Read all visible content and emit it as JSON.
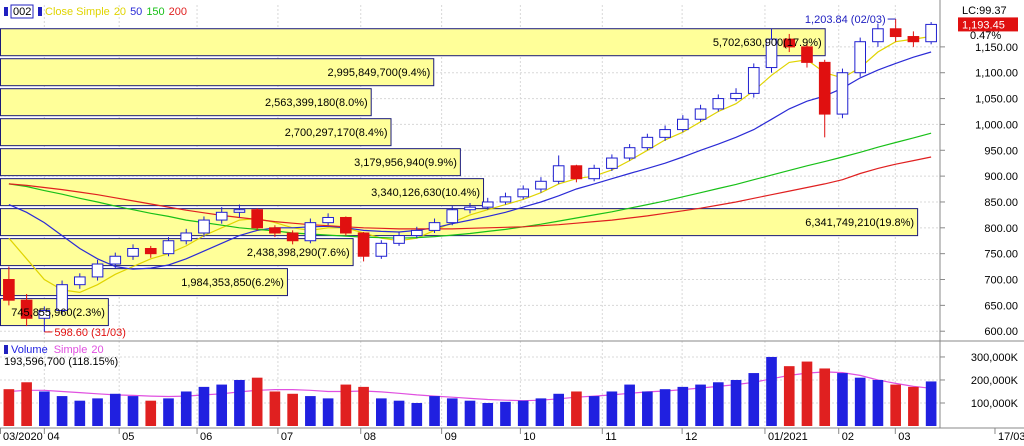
{
  "chart_data": [
    {
      "type": "candlestick",
      "symbol": "002",
      "legend_label": "Close Simple",
      "lc_label": "LC:99.37",
      "last_close_label": "1,193.45",
      "change_label": "0.47%",
      "high_label": "1,203.84 (02/03)",
      "low_label": "598.60 (31/03)",
      "grid": true,
      "up_color": "#1f1fd0",
      "down_color": "#e01010",
      "ylim": [
        583,
        1231
      ],
      "yticks": [
        {
          "value": 600,
          "label": "600.00"
        },
        {
          "value": 650,
          "label": "650.00"
        },
        {
          "value": 700,
          "label": "700.00"
        },
        {
          "value": 750,
          "label": "750.00"
        },
        {
          "value": 800,
          "label": "800.00"
        },
        {
          "value": 850,
          "label": "850.00"
        },
        {
          "value": 900,
          "label": "900.00"
        },
        {
          "value": 950,
          "label": "950.00"
        },
        {
          "value": 1000,
          "label": "1,000.00"
        },
        {
          "value": 1050,
          "label": "1,050.00"
        },
        {
          "value": 1100,
          "label": "1,100.00"
        },
        {
          "value": 1150,
          "label": "1,150.00"
        }
      ],
      "categories": [
        null,
        null,
        null,
        null,
        null,
        null,
        null,
        null,
        null,
        null,
        null,
        null,
        null,
        null,
        null,
        null,
        null,
        null,
        null,
        null,
        null,
        null,
        null,
        null,
        null,
        null,
        null,
        null,
        null,
        null,
        null,
        null,
        null,
        null,
        null,
        null,
        null,
        null,
        null,
        null,
        null,
        null,
        null,
        null,
        null,
        null,
        null,
        null,
        null,
        null,
        null,
        null,
        null
      ],
      "open": [
        700,
        660,
        625,
        640,
        690,
        705,
        730,
        745,
        760,
        750,
        775,
        790,
        815,
        830,
        835,
        800,
        790,
        775,
        810,
        820,
        790,
        745,
        770,
        785,
        795,
        810,
        835,
        840,
        850,
        860,
        875,
        890,
        920,
        895,
        915,
        935,
        955,
        975,
        990,
        1010,
        1030,
        1050,
        1060,
        1110,
        1165,
        1150,
        1120,
        1020,
        1100,
        1160,
        1185,
        1170,
        1160
      ],
      "high": [
        725,
        672,
        648,
        698,
        712,
        738,
        752,
        768,
        765,
        782,
        798,
        822,
        840,
        845,
        838,
        805,
        795,
        818,
        828,
        822,
        792,
        776,
        792,
        802,
        818,
        842,
        848,
        858,
        868,
        882,
        898,
        940,
        922,
        922,
        942,
        962,
        982,
        998,
        1018,
        1038,
        1058,
        1070,
        1118,
        1185,
        1175,
        1160,
        1125,
        1108,
        1168,
        1195,
        1203.84,
        1180,
        1198
      ],
      "low": [
        650,
        610,
        598.6,
        632,
        682,
        698,
        722,
        738,
        742,
        745,
        768,
        782,
        808,
        820,
        795,
        782,
        768,
        770,
        805,
        785,
        735,
        740,
        765,
        780,
        790,
        805,
        828,
        835,
        845,
        855,
        868,
        885,
        888,
        890,
        910,
        930,
        950,
        968,
        985,
        1005,
        1025,
        1045,
        1052,
        1100,
        1140,
        1110,
        975,
        1012,
        1092,
        1150,
        1160,
        1150,
        1155
      ],
      "close": [
        660,
        625,
        640,
        690,
        705,
        730,
        745,
        760,
        750,
        775,
        790,
        815,
        830,
        835,
        800,
        790,
        775,
        810,
        820,
        790,
        745,
        770,
        785,
        795,
        810,
        835,
        840,
        850,
        860,
        875,
        890,
        920,
        895,
        915,
        935,
        955,
        975,
        990,
        1010,
        1030,
        1050,
        1060,
        1110,
        1165,
        1150,
        1120,
        1020,
        1100,
        1160,
        1185,
        1170,
        1160,
        1193.45
      ],
      "series": [
        {
          "name": "20",
          "color": "#e0d400",
          "values": [
            780,
            740,
            700,
            680,
            675,
            690,
            710,
            725,
            740,
            750,
            765,
            785,
            800,
            815,
            818,
            810,
            800,
            795,
            800,
            800,
            790,
            780,
            775,
            780,
            795,
            810,
            825,
            835,
            845,
            855,
            868,
            885,
            895,
            900,
            912,
            930,
            950,
            970,
            985,
            1005,
            1025,
            1040,
            1065,
            1095,
            1120,
            1125,
            1100,
            1090,
            1110,
            1140,
            1160,
            1165,
            1170
          ]
        },
        {
          "name": "50",
          "color": "#2b2bd6",
          "values": [
            845,
            830,
            810,
            785,
            760,
            740,
            725,
            720,
            722,
            728,
            740,
            755,
            770,
            785,
            795,
            800,
            800,
            802,
            803,
            800,
            795,
            793,
            792,
            795,
            800,
            808,
            815,
            822,
            830,
            840,
            850,
            862,
            875,
            885,
            895,
            905,
            915,
            925,
            937,
            950,
            962,
            975,
            990,
            1010,
            1030,
            1045,
            1055,
            1070,
            1090,
            1105,
            1118,
            1130,
            1140
          ]
        },
        {
          "name": "150",
          "color": "#18c018",
          "values": [
            885,
            880,
            872,
            865,
            857,
            850,
            842,
            835,
            828,
            822,
            815,
            810,
            805,
            800,
            797,
            794,
            790,
            788,
            786,
            784,
            782,
            781,
            780,
            781,
            783,
            786,
            789,
            793,
            797,
            802,
            807,
            813,
            819,
            825,
            831,
            838,
            845,
            852,
            860,
            868,
            876,
            884,
            893,
            902,
            911,
            920,
            928,
            937,
            946,
            956,
            965,
            974,
            983
          ]
        },
        {
          "name": "200",
          "color": "#e02020",
          "values": [
            885,
            882,
            878,
            874,
            869,
            864,
            858,
            852,
            846,
            840,
            834,
            829,
            824,
            820,
            816,
            812,
            809,
            806,
            804,
            802,
            800,
            799,
            798,
            798,
            798,
            798,
            799,
            800,
            801,
            802,
            804,
            806,
            809,
            812,
            815,
            819,
            823,
            828,
            833,
            838,
            844,
            850,
            857,
            864,
            871,
            878,
            885,
            893,
            905,
            915,
            923,
            930,
            937
          ]
        }
      ],
      "volume_profile": {
        "color": "#ffff99",
        "edge_color": "#1a1a7a",
        "xlim": [
          0,
          6500000000
        ],
        "bins": [
          608,
          666,
          724,
          782,
          840,
          898,
          956,
          1014,
          1072,
          1130,
          1188
        ],
        "values": [
          745855960,
          1984353850,
          2438398290,
          6341749210,
          3340126630,
          3179956940,
          2700297170,
          2563399180,
          2995849700,
          5702630900
        ],
        "value_labels": [
          "745,855,960(2.3%)",
          "1,984,353,850(6.2%)",
          "2,438,398,290(7.6%)",
          "6,341,749,210(19.8%)",
          "3,340,126,630(10.4%)",
          "3,179,956,940(9.9%)",
          "2,700,297,170(8.4%)",
          "2,563,399,180(8.0%)",
          "2,995,849,700(9.4%)",
          "5,702,630,900(17.9%)"
        ]
      }
    },
    {
      "type": "bar",
      "last_label": "193,596,700 (118.15%)",
      "grid": true,
      "ylim": [
        0,
        365000000
      ],
      "yticks": [
        {
          "value": 100000000,
          "label": "100,000K"
        },
        {
          "value": 200000000,
          "label": "200,000K"
        },
        {
          "value": 300000000,
          "label": "300,000K"
        }
      ],
      "xticks": [
        {
          "value": -0.5,
          "label": "03/2020"
        },
        {
          "value": 2,
          "label": "04"
        },
        {
          "value": 6.22,
          "label": "05"
        },
        {
          "value": 10.61,
          "label": "06"
        },
        {
          "value": 15.17,
          "label": "07"
        },
        {
          "value": 19.84,
          "label": "08"
        },
        {
          "value": 24.4,
          "label": "09"
        },
        {
          "value": 28.84,
          "label": "10"
        },
        {
          "value": 33.46,
          "label": "11"
        },
        {
          "value": 37.96,
          "label": "12"
        },
        {
          "value": 42.63,
          "label": "01/2021"
        },
        {
          "value": 46.79,
          "label": "02"
        },
        {
          "value": 49.98,
          "label": "03"
        },
        {
          "value": 55.6,
          "label": "17/03"
        }
      ],
      "series": [
        {
          "name": "Volume",
          "color": "#2020e0",
          "down_color": "#e02020",
          "values": [
            160000000,
            190000000,
            150000000,
            130000000,
            110000000,
            120000000,
            140000000,
            130000000,
            110000000,
            120000000,
            150000000,
            170000000,
            180000000,
            200000000,
            210000000,
            150000000,
            140000000,
            130000000,
            120000000,
            180000000,
            170000000,
            120000000,
            110000000,
            100000000,
            130000000,
            120000000,
            110000000,
            100000000,
            105000000,
            110000000,
            120000000,
            140000000,
            150000000,
            130000000,
            150000000,
            180000000,
            150000000,
            160000000,
            170000000,
            180000000,
            190000000,
            200000000,
            230000000,
            300000000,
            260000000,
            280000000,
            250000000,
            230000000,
            210000000,
            200000000,
            180000000,
            170000000,
            193596700
          ]
        },
        {
          "name": "Simple",
          "period_label": "20",
          "color": "#e050e0",
          "values": [
            150000000,
            155000000,
            155000000,
            150000000,
            145000000,
            140000000,
            135000000,
            133000000,
            130000000,
            128000000,
            130000000,
            135000000,
            140000000,
            148000000,
            155000000,
            158000000,
            158000000,
            155000000,
            150000000,
            150000000,
            152000000,
            148000000,
            142000000,
            135000000,
            130000000,
            125000000,
            120000000,
            115000000,
            112000000,
            110000000,
            112000000,
            118000000,
            125000000,
            130000000,
            135000000,
            142000000,
            148000000,
            152000000,
            158000000,
            165000000,
            172000000,
            180000000,
            190000000,
            205000000,
            220000000,
            230000000,
            235000000,
            232000000,
            220000000,
            200000000,
            185000000,
            172000000,
            163856000
          ]
        }
      ]
    }
  ]
}
